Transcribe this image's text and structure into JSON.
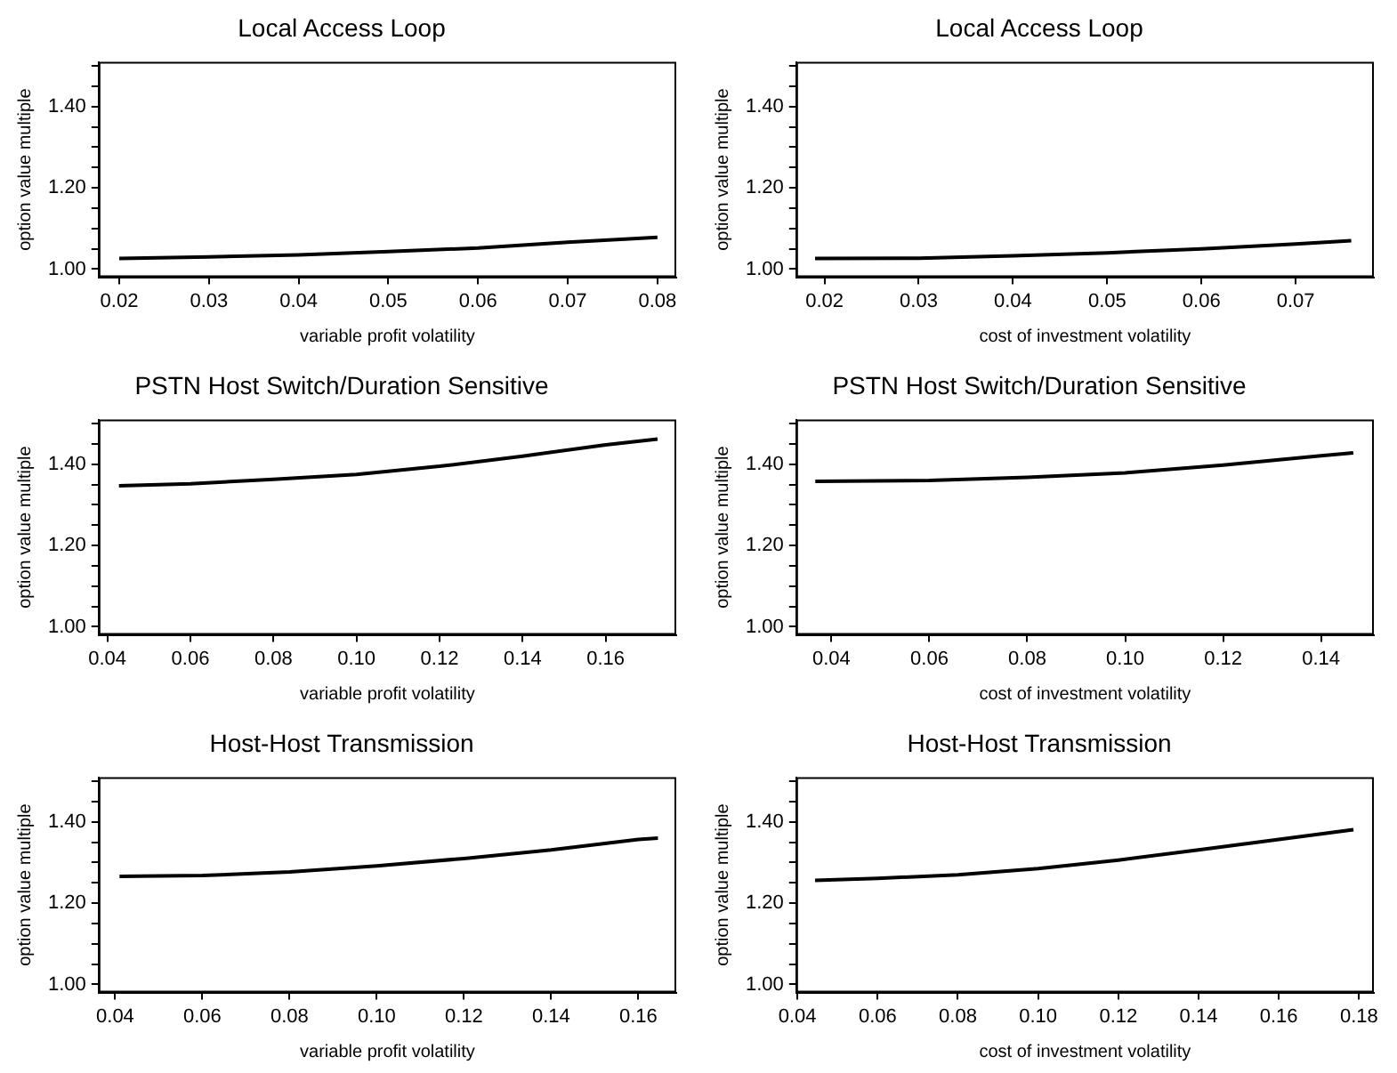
{
  "chart_data": [
    {
      "type": "line",
      "title": "Local Access Loop",
      "xlabel": "variable profit volatility",
      "ylabel": "option value multiple",
      "color": "#000000",
      "x": [
        0.02,
        0.03,
        0.04,
        0.05,
        0.06,
        0.07,
        0.08
      ],
      "values": [
        1.026,
        1.03,
        1.035,
        1.043,
        1.052,
        1.066,
        1.078
      ],
      "xlim": [
        0.0177,
        0.0821
      ],
      "ylim": [
        0.98,
        1.51
      ],
      "xticks": [
        {
          "value": 0.02,
          "label": "0.02"
        },
        {
          "value": 0.03,
          "label": "0.03"
        },
        {
          "value": 0.04,
          "label": "0.04"
        },
        {
          "value": 0.05,
          "label": "0.05"
        },
        {
          "value": 0.06,
          "label": "0.06"
        },
        {
          "value": 0.07,
          "label": "0.07"
        },
        {
          "value": 0.08,
          "label": "0.08"
        }
      ],
      "yticks": [
        {
          "value": 1.0,
          "label": "1.00"
        },
        {
          "value": 1.05,
          "label": null
        },
        {
          "value": 1.1,
          "label": null
        },
        {
          "value": 1.15,
          "label": null
        },
        {
          "value": 1.2,
          "label": "1.20"
        },
        {
          "value": 1.25,
          "label": null
        },
        {
          "value": 1.3,
          "label": null
        },
        {
          "value": 1.35,
          "label": null
        },
        {
          "value": 1.4,
          "label": "1.40"
        },
        {
          "value": 1.45,
          "label": null
        },
        {
          "value": 1.5,
          "label": null
        }
      ]
    },
    {
      "type": "line",
      "title": "Local Access Loop",
      "xlabel": "cost of investment volatility",
      "ylabel": "option value multiple",
      "color": "#000000",
      "x": [
        0.019,
        0.03,
        0.04,
        0.05,
        0.06,
        0.07,
        0.0759
      ],
      "values": [
        1.026,
        1.027,
        1.033,
        1.04,
        1.05,
        1.062,
        1.07
      ],
      "xlim": [
        0.017,
        0.0783
      ],
      "ylim": [
        0.98,
        1.51
      ],
      "xticks": [
        {
          "value": 0.02,
          "label": "0.02"
        },
        {
          "value": 0.03,
          "label": "0.03"
        },
        {
          "value": 0.04,
          "label": "0.04"
        },
        {
          "value": 0.05,
          "label": "0.05"
        },
        {
          "value": 0.06,
          "label": "0.06"
        },
        {
          "value": 0.07,
          "label": "0.07"
        }
      ],
      "yticks": [
        {
          "value": 1.0,
          "label": "1.00"
        },
        {
          "value": 1.05,
          "label": null
        },
        {
          "value": 1.1,
          "label": null
        },
        {
          "value": 1.15,
          "label": null
        },
        {
          "value": 1.2,
          "label": "1.20"
        },
        {
          "value": 1.25,
          "label": null
        },
        {
          "value": 1.3,
          "label": null
        },
        {
          "value": 1.35,
          "label": null
        },
        {
          "value": 1.4,
          "label": "1.40"
        },
        {
          "value": 1.45,
          "label": null
        },
        {
          "value": 1.5,
          "label": null
        }
      ]
    },
    {
      "type": "line",
      "title": "PSTN Host Switch/Duration Sensitive",
      "xlabel": "variable profit volatility",
      "ylabel": "option value multiple",
      "color": "#000000",
      "x": [
        0.0428,
        0.06,
        0.08,
        0.1,
        0.12,
        0.14,
        0.16,
        0.1725
      ],
      "values": [
        1.347,
        1.352,
        1.363,
        1.375,
        1.395,
        1.42,
        1.448,
        1.462
      ],
      "xlim": [
        0.0379,
        0.177
      ],
      "ylim": [
        0.98,
        1.51
      ],
      "xticks": [
        {
          "value": 0.04,
          "label": "0.04"
        },
        {
          "value": 0.06,
          "label": "0.06"
        },
        {
          "value": 0.08,
          "label": "0.08"
        },
        {
          "value": 0.1,
          "label": "0.10"
        },
        {
          "value": 0.12,
          "label": "0.12"
        },
        {
          "value": 0.14,
          "label": "0.14"
        },
        {
          "value": 0.16,
          "label": "0.16"
        }
      ],
      "yticks": [
        {
          "value": 1.0,
          "label": "1.00"
        },
        {
          "value": 1.05,
          "label": null
        },
        {
          "value": 1.1,
          "label": null
        },
        {
          "value": 1.15,
          "label": null
        },
        {
          "value": 1.2,
          "label": "1.20"
        },
        {
          "value": 1.25,
          "label": null
        },
        {
          "value": 1.3,
          "label": null
        },
        {
          "value": 1.35,
          "label": null
        },
        {
          "value": 1.4,
          "label": "1.40"
        },
        {
          "value": 1.45,
          "label": null
        },
        {
          "value": 1.5,
          "label": null
        }
      ]
    },
    {
      "type": "line",
      "title": "PSTN Host Switch/Duration Sensitive",
      "xlabel": "cost of investment volatility",
      "ylabel": "option value multiple",
      "color": "#000000",
      "x": [
        0.0367,
        0.06,
        0.08,
        0.1,
        0.12,
        0.14,
        0.1466
      ],
      "values": [
        1.358,
        1.36,
        1.368,
        1.379,
        1.398,
        1.421,
        1.428
      ],
      "xlim": [
        0.0328,
        0.1508
      ],
      "ylim": [
        0.98,
        1.51
      ],
      "xticks": [
        {
          "value": 0.04,
          "label": "0.04"
        },
        {
          "value": 0.06,
          "label": "0.06"
        },
        {
          "value": 0.08,
          "label": "0.08"
        },
        {
          "value": 0.1,
          "label": "0.10"
        },
        {
          "value": 0.12,
          "label": "0.12"
        },
        {
          "value": 0.14,
          "label": "0.14"
        }
      ],
      "yticks": [
        {
          "value": 1.0,
          "label": "1.00"
        },
        {
          "value": 1.05,
          "label": null
        },
        {
          "value": 1.1,
          "label": null
        },
        {
          "value": 1.15,
          "label": null
        },
        {
          "value": 1.2,
          "label": "1.20"
        },
        {
          "value": 1.25,
          "label": null
        },
        {
          "value": 1.3,
          "label": null
        },
        {
          "value": 1.35,
          "label": null
        },
        {
          "value": 1.4,
          "label": "1.40"
        },
        {
          "value": 1.45,
          "label": null
        },
        {
          "value": 1.5,
          "label": null
        }
      ]
    },
    {
      "type": "line",
      "title": "Host-Host Transmission",
      "xlabel": "variable profit volatility",
      "ylabel": "option value multiple",
      "color": "#000000",
      "x": [
        0.041,
        0.06,
        0.08,
        0.1,
        0.12,
        0.14,
        0.16,
        0.1645
      ],
      "values": [
        1.266,
        1.268,
        1.277,
        1.292,
        1.31,
        1.331,
        1.357,
        1.36
      ],
      "xlim": [
        0.0362,
        0.1687
      ],
      "ylim": [
        0.98,
        1.51
      ],
      "xticks": [
        {
          "value": 0.04,
          "label": "0.04"
        },
        {
          "value": 0.06,
          "label": "0.06"
        },
        {
          "value": 0.08,
          "label": "0.08"
        },
        {
          "value": 0.1,
          "label": "0.10"
        },
        {
          "value": 0.12,
          "label": "0.12"
        },
        {
          "value": 0.14,
          "label": "0.14"
        },
        {
          "value": 0.16,
          "label": "0.16"
        }
      ],
      "yticks": [
        {
          "value": 1.0,
          "label": "1.00"
        },
        {
          "value": 1.05,
          "label": null
        },
        {
          "value": 1.1,
          "label": null
        },
        {
          "value": 1.15,
          "label": null
        },
        {
          "value": 1.2,
          "label": "1.20"
        },
        {
          "value": 1.25,
          "label": null
        },
        {
          "value": 1.3,
          "label": null
        },
        {
          "value": 1.35,
          "label": null
        },
        {
          "value": 1.4,
          "label": "1.40"
        },
        {
          "value": 1.45,
          "label": null
        },
        {
          "value": 1.5,
          "label": null
        }
      ]
    },
    {
      "type": "line",
      "title": "Host-Host Transmission",
      "xlabel": "cost of investment volatility",
      "ylabel": "option value multiple",
      "color": "#000000",
      "x": [
        0.0444,
        0.06,
        0.08,
        0.1,
        0.12,
        0.14,
        0.16,
        0.1786
      ],
      "values": [
        1.256,
        1.261,
        1.27,
        1.285,
        1.306,
        1.331,
        1.357,
        1.381
      ],
      "xlim": [
        0.0397,
        0.1837
      ],
      "ylim": [
        0.98,
        1.51
      ],
      "xticks": [
        {
          "value": 0.04,
          "label": "0.04"
        },
        {
          "value": 0.06,
          "label": "0.06"
        },
        {
          "value": 0.08,
          "label": "0.08"
        },
        {
          "value": 0.1,
          "label": "0.10"
        },
        {
          "value": 0.12,
          "label": "0.12"
        },
        {
          "value": 0.14,
          "label": "0.14"
        },
        {
          "value": 0.16,
          "label": "0.16"
        },
        {
          "value": 0.18,
          "label": "0.18"
        }
      ],
      "yticks": [
        {
          "value": 1.0,
          "label": "1.00"
        },
        {
          "value": 1.05,
          "label": null
        },
        {
          "value": 1.1,
          "label": null
        },
        {
          "value": 1.15,
          "label": null
        },
        {
          "value": 1.2,
          "label": "1.20"
        },
        {
          "value": 1.25,
          "label": null
        },
        {
          "value": 1.3,
          "label": null
        },
        {
          "value": 1.35,
          "label": null
        },
        {
          "value": 1.4,
          "label": "1.40"
        },
        {
          "value": 1.45,
          "label": null
        },
        {
          "value": 1.5,
          "label": null
        }
      ]
    }
  ]
}
